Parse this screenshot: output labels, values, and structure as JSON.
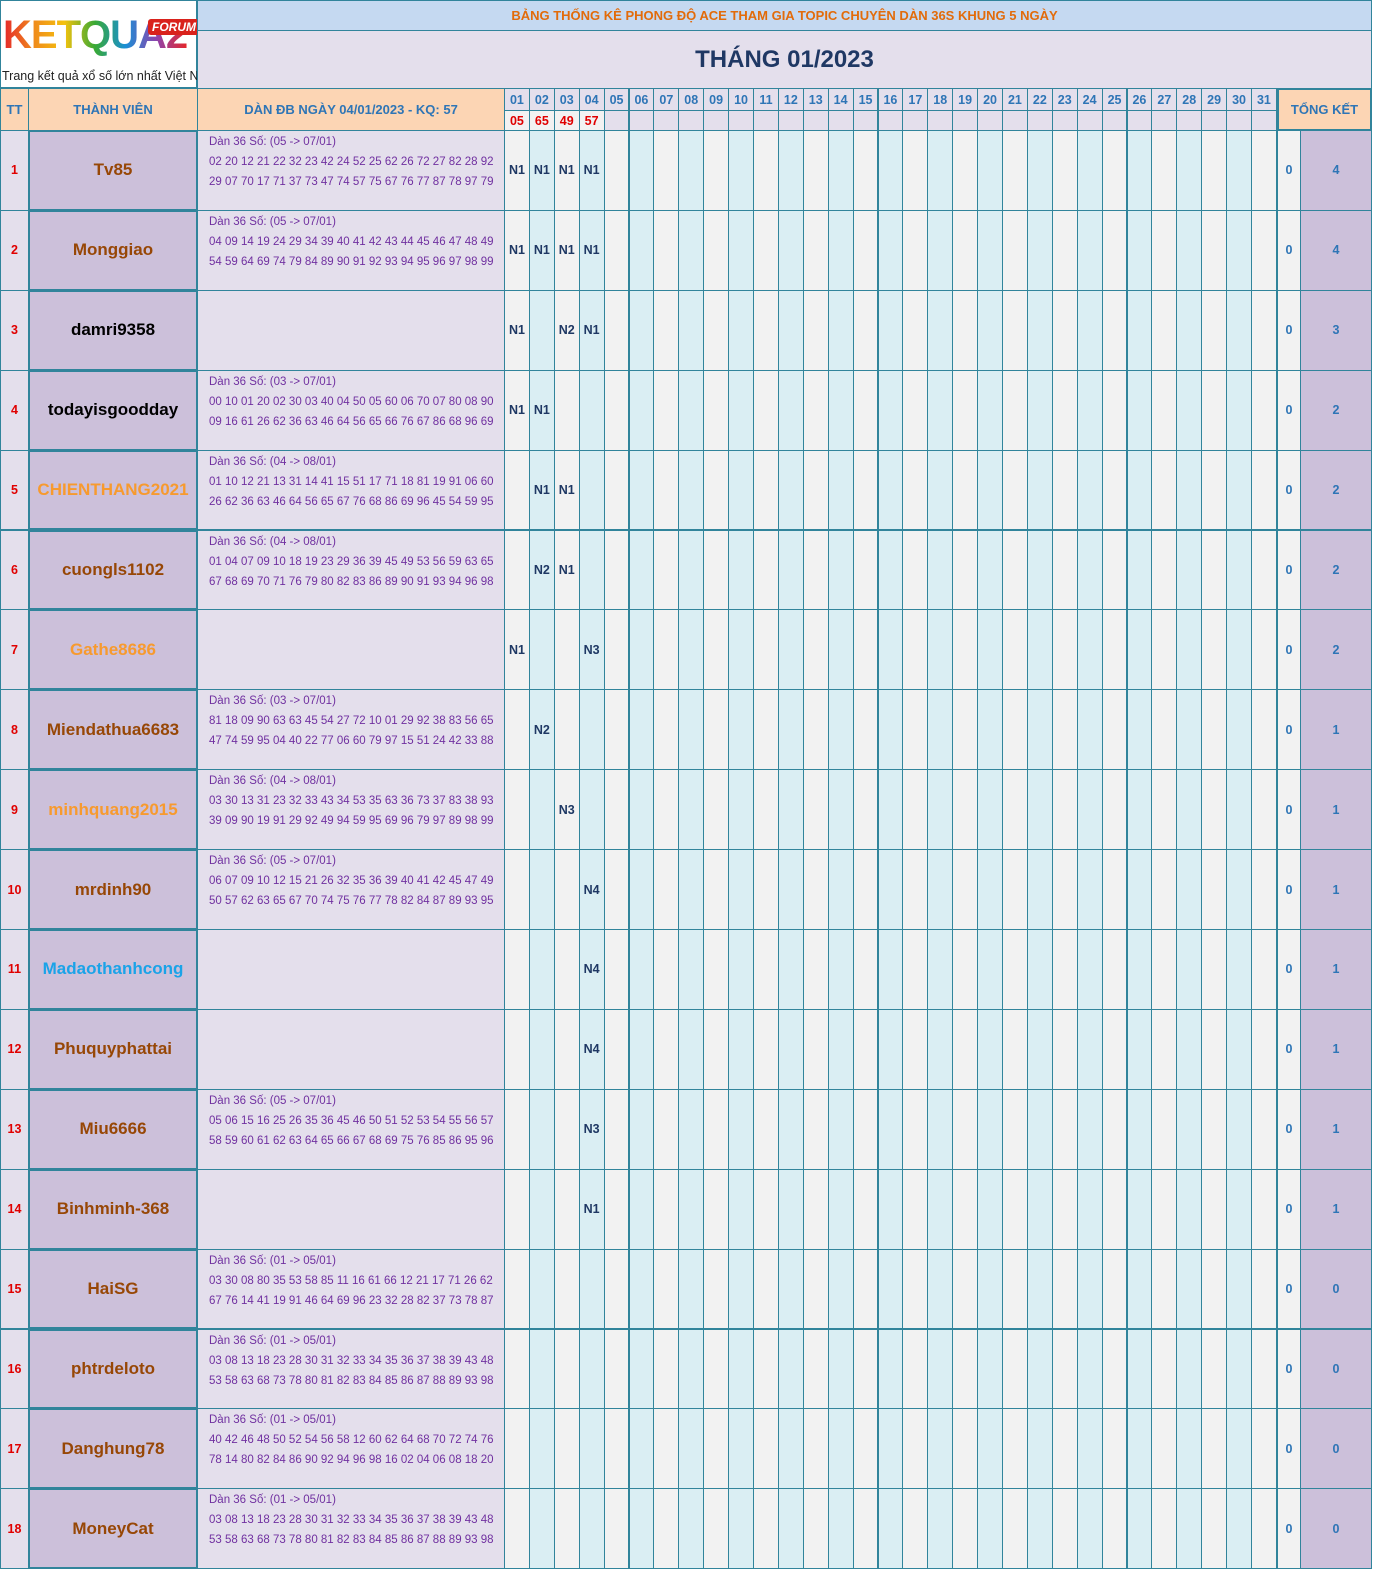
{
  "logo": {
    "brand": "KETQUA2",
    "badge": "FORUM",
    "tagline": "Trang kết quả xổ số lớn nhất Việt Nam"
  },
  "header": {
    "title": "BẢNG THỐNG KÊ PHONG ĐỘ ACE THAM GIA TOPIC CHUYÊN DÀN 36S KHUNG 5 NGÀY",
    "month": "THÁNG 01/2023"
  },
  "columns": {
    "tt": "TT",
    "member": "THÀNH VIÊN",
    "dan": "DÀN ĐB NGÀY 04/01/2023 - KQ: 57",
    "total": "TỔNG KẾT"
  },
  "days": [
    "01",
    "02",
    "03",
    "04",
    "05",
    "06",
    "07",
    "08",
    "09",
    "10",
    "11",
    "12",
    "13",
    "14",
    "15",
    "16",
    "17",
    "18",
    "19",
    "20",
    "21",
    "22",
    "23",
    "24",
    "25",
    "26",
    "27",
    "28",
    "29",
    "30",
    "31"
  ],
  "results": [
    "05",
    "65",
    "49",
    "57"
  ],
  "rows": [
    {
      "tt": 1,
      "member": "Tv85",
      "color": "#974706",
      "dan_title": "Dàn 36 Số: (05 -> 07/01)",
      "dan_numbers": "02 20 12 21 22 32 23 42 24 52 25 62 26 72 27 82 28 92 29 07 70 17 71 37 73 47 74 57 75 67 76 77 87 78 97 79",
      "hits": [
        "N1",
        "N1",
        "N1",
        "N1"
      ],
      "zero": 0,
      "total": 4
    },
    {
      "tt": 2,
      "member": "Monggiao",
      "color": "#974706",
      "dan_title": "Dàn 36 Số: (05 -> 07/01)",
      "dan_numbers": "04 09 14 19 24 29 34 39 40 41 42 43 44 45 46 47 48 49 54 59 64 69 74 79 84 89 90 91 92 93 94 95 96 97 98 99",
      "hits": [
        "N1",
        "N1",
        "N1",
        "N1"
      ],
      "zero": 0,
      "total": 4
    },
    {
      "tt": 3,
      "member": "damri9358",
      "color": "#000000",
      "dan_title": null,
      "dan_numbers": null,
      "hits": [
        "N1",
        null,
        "N2",
        "N1"
      ],
      "zero": 0,
      "total": 3
    },
    {
      "tt": 4,
      "member": "todayisgoodday",
      "color": "#000000",
      "dan_title": "Dàn 36 Số: (03 -> 07/01)",
      "dan_numbers": "00 10 01 20 02 30 03 40 04 50 05 60 06 70 07 80 08 90 09 16 61 26 62 36 63 46 64 56 65 66 76 67 86 68 96 69",
      "hits": [
        "N1",
        "N1",
        null,
        null
      ],
      "zero": 0,
      "total": 2
    },
    {
      "tt": 5,
      "member": "CHIENTHANG2021",
      "color": "#f79a2e",
      "dan_title": "Dàn 36 Số: (04 -> 08/01)",
      "dan_numbers": "01 10 12 21 13 31 14 41 15 51 17 71 18 81 19 91 06 60 26 62 36 63 46 64 56 65 67 76 68 86 69 96 45 54 59 95",
      "hits": [
        null,
        "N1",
        "N1",
        null
      ],
      "zero": 0,
      "total": 2
    },
    {
      "tt": 6,
      "member": "cuongls1102",
      "color": "#974706",
      "dan_title": "Dàn 36 Số: (04 -> 08/01)",
      "dan_numbers": "01 04 07 09 10 18 19 23 29 36 39 45 49 53 56 59 63 65 67 68 69 70 71 76 79 80 82 83 86 89 90 91 93 94 96 98",
      "hits": [
        null,
        "N2",
        "N1",
        null
      ],
      "zero": 0,
      "total": 2
    },
    {
      "tt": 7,
      "member": "Gathe8686",
      "color": "#f79a2e",
      "dan_title": null,
      "dan_numbers": null,
      "hits": [
        "N1",
        null,
        null,
        "N3"
      ],
      "zero": 0,
      "total": 2
    },
    {
      "tt": 8,
      "member": "Miendathua6683",
      "color": "#974706",
      "dan_title": "Dàn 36 Số: (03 -> 07/01)",
      "dan_numbers": "81 18 09 90 63 63 45 54 27 72 10 01 29 92 38 83 56 65 47 74 59 95 04 40 22 77 06 60 79 97 15 51 24 42 33 88",
      "hits": [
        null,
        "N2",
        null,
        null
      ],
      "zero": 0,
      "total": 1
    },
    {
      "tt": 9,
      "member": "minhquang2015",
      "color": "#f79a2e",
      "dan_title": "Dàn 36 Số: (04 -> 08/01)",
      "dan_numbers": "03 30 13 31 23 32 33 43 34 53 35 63 36 73 37 83 38 93 39 09 90 19 91 29 92 49 94 59 95 69 96 79 97 89 98 99",
      "hits": [
        null,
        null,
        "N3",
        null
      ],
      "zero": 0,
      "total": 1
    },
    {
      "tt": 10,
      "member": "mrdinh90",
      "color": "#974706",
      "dan_title": "Dàn 36 Số: (05 -> 07/01)",
      "dan_numbers": "06 07 09 10 12 15 21 26 32 35 36 39 40 41 42 45 47 49 50 57 62 63 65 67 70 74 75 76 77 78 82 84 87 89 93 95",
      "hits": [
        null,
        null,
        null,
        "N4"
      ],
      "zero": 0,
      "total": 1
    },
    {
      "tt": 11,
      "member": "Madaothanhcong",
      "color": "#1aa3e8",
      "dan_title": null,
      "dan_numbers": null,
      "hits": [
        null,
        null,
        null,
        "N4"
      ],
      "zero": 0,
      "total": 1
    },
    {
      "tt": 12,
      "member": "Phuquyphattai",
      "color": "#974706",
      "dan_title": null,
      "dan_numbers": null,
      "hits": [
        null,
        null,
        null,
        "N4"
      ],
      "zero": 0,
      "total": 1
    },
    {
      "tt": 13,
      "member": "Miu6666",
      "color": "#974706",
      "dan_title": "Dàn 36 Số: (05 -> 07/01)",
      "dan_numbers": "05 06 15 16 25 26 35 36 45 46 50 51 52 53 54 55 56 57 58 59 60 61 62 63 64 65 66 67 68 69 75 76 85 86 95 96",
      "hits": [
        null,
        null,
        null,
        "N3"
      ],
      "zero": 0,
      "total": 1
    },
    {
      "tt": 14,
      "member": "Binhminh-368",
      "color": "#974706",
      "dan_title": null,
      "dan_numbers": null,
      "hits": [
        null,
        null,
        null,
        "N1"
      ],
      "zero": 0,
      "total": 1
    },
    {
      "tt": 15,
      "member": "HaiSG",
      "color": "#974706",
      "dan_title": "Dàn 36 Số: (01 -> 05/01)",
      "dan_numbers": "03 30 08 80 35 53 58 85 11 16 61 66 12 21 17 71 26 62 67 76 14 41 19 91 46 64 69 96 23 32 28 82 37 73 78 87",
      "hits": [
        null,
        null,
        null,
        null
      ],
      "zero": 0,
      "total": 0
    },
    {
      "tt": 16,
      "member": "phtrdeloto",
      "color": "#974706",
      "dan_title": "Dàn 36 Số: (01 -> 05/01)",
      "dan_numbers": "03 08 13 18 23 28 30 31 32 33 34 35 36 37 38 39 43 48 53 58 63 68 73 78 80 81 82 83 84 85 86 87 88 89 93 98",
      "hits": [
        null,
        null,
        null,
        null
      ],
      "zero": 0,
      "total": 0
    },
    {
      "tt": 17,
      "member": "Danghung78",
      "color": "#974706",
      "dan_title": "Dàn 36 Số: (01 -> 05/01)",
      "dan_numbers": "40 42 46 48 50 52 54 56 58 12 60 62 64 68 70 72 74 76 78 14 80 82 84 86 90 92 94 96 98 16 02 04 06 08 18 20",
      "hits": [
        null,
        null,
        null,
        null
      ],
      "zero": 0,
      "total": 0
    },
    {
      "tt": 18,
      "member": "MoneyCat",
      "color": "#974706",
      "dan_title": "Dàn 36 Số: (01 -> 05/01)",
      "dan_numbers": "03 08 13 18 23 28 30 31 32 33 34 35 36 37 38 39 43 48 53 58 63 68 73 78 80 81 82 83 84 85 86 87 88 89 93 98",
      "hits": [
        null,
        null,
        null,
        null
      ],
      "zero": 0,
      "total": 0
    }
  ]
}
